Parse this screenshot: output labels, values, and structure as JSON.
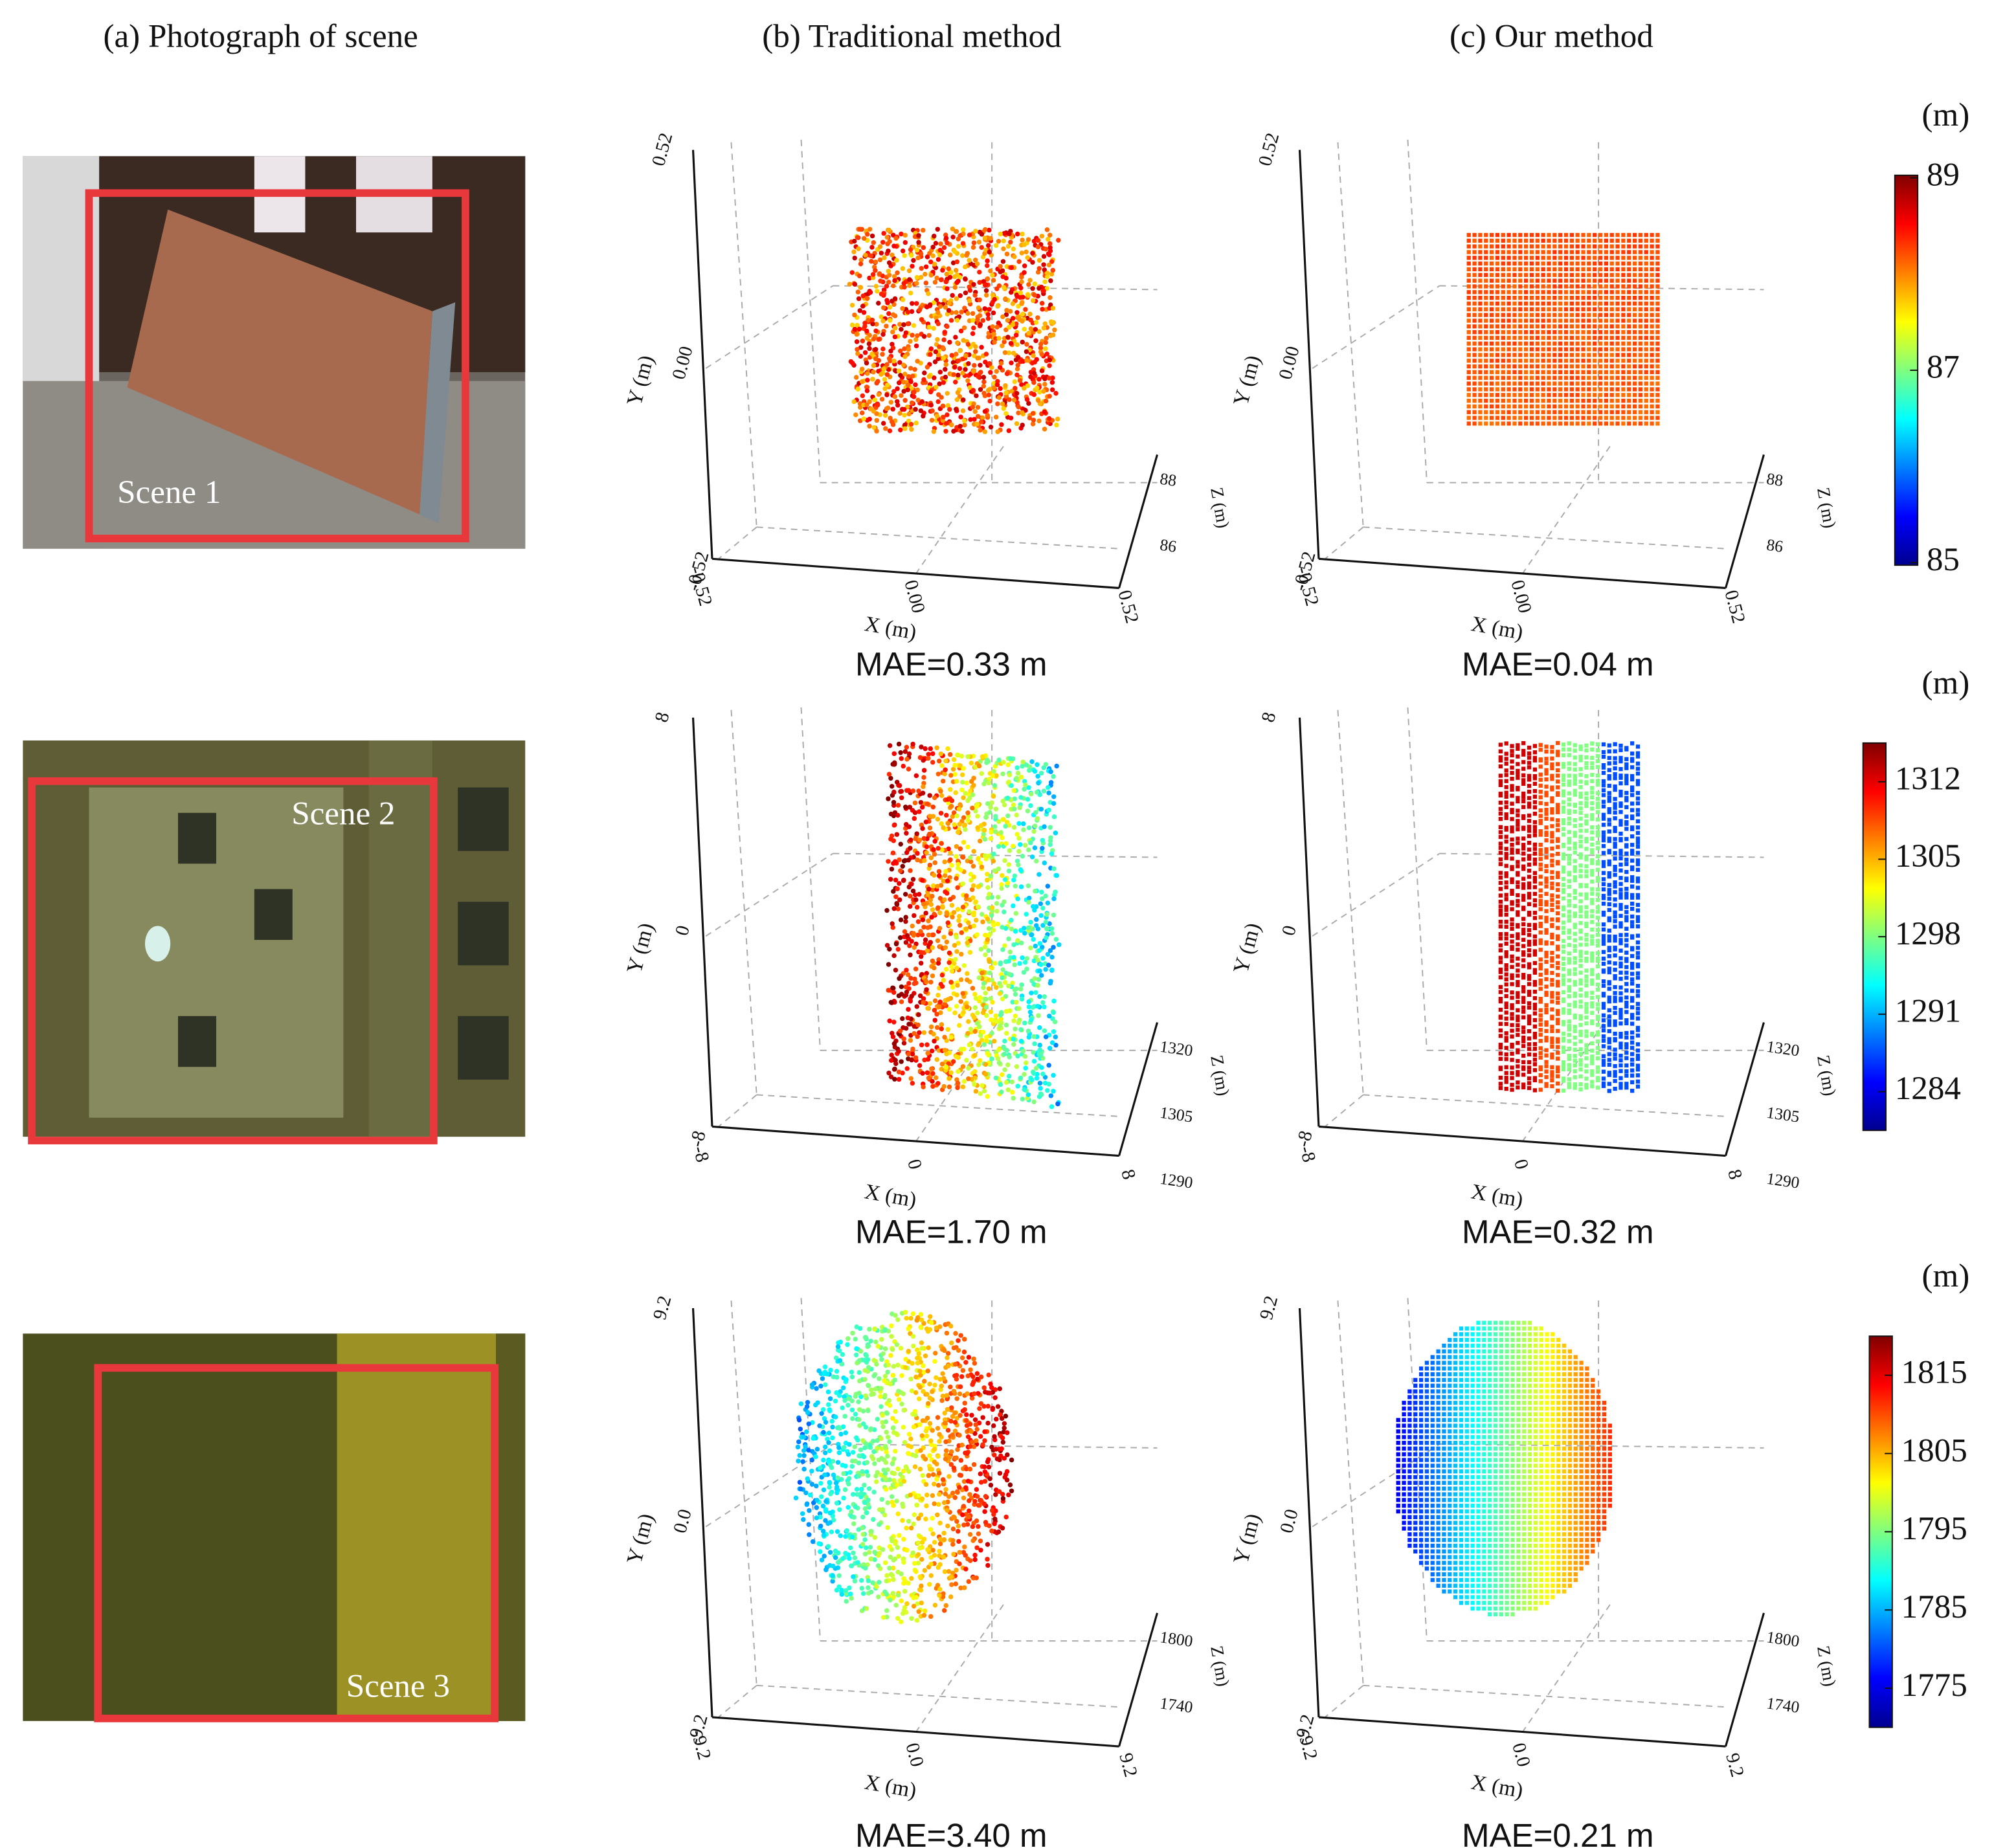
{
  "headers": [
    "(a) Photograph of scene",
    "(b) Traditional method",
    "(c) Our method"
  ],
  "rows": [
    {
      "scene_label": "Scene 1",
      "unit": "(m)",
      "colorbar_ticks": [
        89,
        87,
        85
      ],
      "plots": [
        {
          "y_label": "Y (m)",
          "y_ticks": [
            "0.52",
            "0.00",
            "-0.52"
          ],
          "x_label": "X (m)",
          "x_ticks": [
            "-0.52",
            "0.00",
            "0.52"
          ],
          "z_label": "Z (m)",
          "z_ticks": [
            "88",
            "86"
          ],
          "mae": "MAE=0.33 m"
        },
        {
          "y_label": "Y (m)",
          "y_ticks": [
            "0.52",
            "0.00",
            "-0.52"
          ],
          "x_label": "X (m)",
          "x_ticks": [
            "-0.52",
            "0.00",
            "0.52"
          ],
          "z_label": "Z (m)",
          "z_ticks": [
            "88",
            "86"
          ],
          "mae": "MAE=0.04 m"
        }
      ]
    },
    {
      "scene_label": "Scene 2",
      "unit": "(m)",
      "colorbar_ticks": [
        1312,
        1305,
        1298,
        1291,
        1284
      ],
      "plots": [
        {
          "y_label": "Y (m)",
          "y_ticks": [
            "8",
            "0",
            "-8"
          ],
          "x_label": "X (m)",
          "x_ticks": [
            "-8",
            "0",
            "8"
          ],
          "z_label": "Z (m)",
          "z_ticks": [
            "1320",
            "1305",
            "1290"
          ],
          "mae": "MAE=1.70 m"
        },
        {
          "y_label": "Y (m)",
          "y_ticks": [
            "8",
            "0",
            "-8"
          ],
          "x_label": "X (m)",
          "x_ticks": [
            "-8",
            "0",
            "8"
          ],
          "z_label": "Z (m)",
          "z_ticks": [
            "1320",
            "1305",
            "1290"
          ],
          "mae": "MAE=0.32 m"
        }
      ]
    },
    {
      "scene_label": "Scene 3",
      "unit": "(m)",
      "colorbar_ticks": [
        1815,
        1805,
        1795,
        1785,
        1775
      ],
      "plots": [
        {
          "y_label": "Y (m)",
          "y_ticks": [
            "9.2",
            "0.0",
            "-9.2"
          ],
          "x_label": "X (m)",
          "x_ticks": [
            "-9.2",
            "0.0",
            "9.2"
          ],
          "z_label": "Z (m)",
          "z_ticks": [
            "1800",
            "1740"
          ],
          "mae": "MAE=3.40 m"
        },
        {
          "y_label": "Y (m)",
          "y_ticks": [
            "9.2",
            "0.0",
            "-9.2"
          ],
          "x_label": "X (m)",
          "x_ticks": [
            "-9.2",
            "0.0",
            "9.2"
          ],
          "z_label": "Z (m)",
          "z_ticks": [
            "1800",
            "1740"
          ],
          "mae": "MAE=0.21 m"
        }
      ]
    }
  ]
}
